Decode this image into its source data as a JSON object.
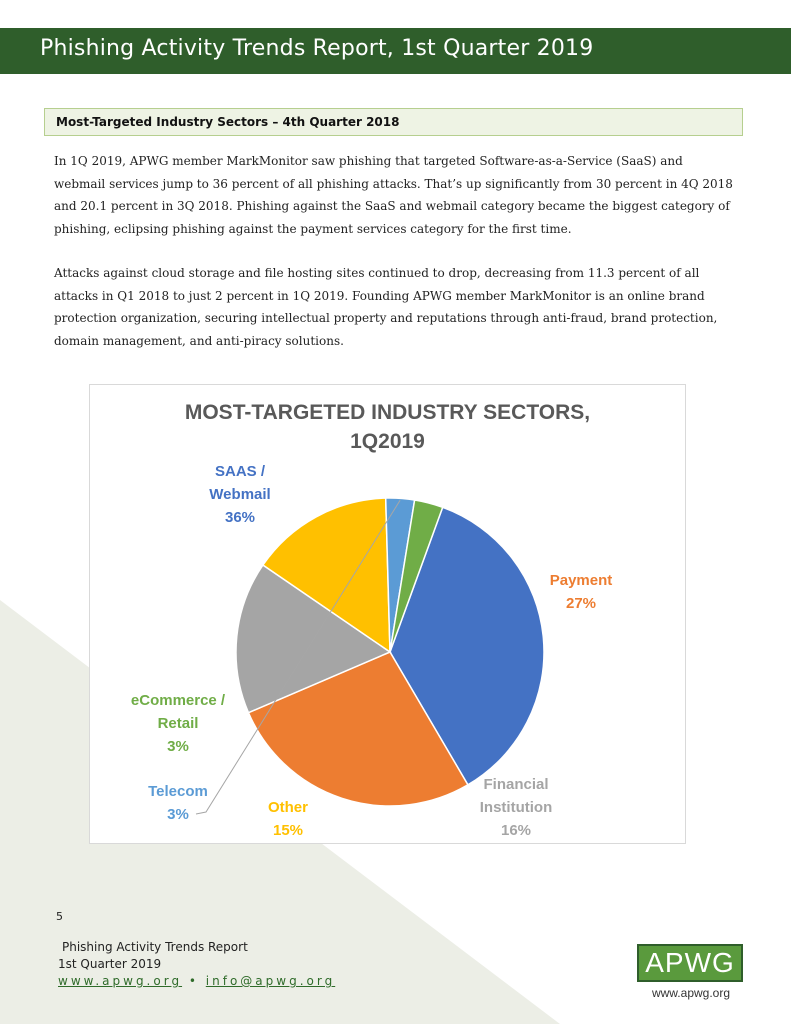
{
  "header": {
    "title": "Phishing Activity Trends Report, 1st Quarter 2019"
  },
  "section": {
    "title": "Most-Targeted Industry Sectors – 4th Quarter 2018"
  },
  "body": {
    "paragraph_1": "In 1Q 2019, APWG member MarkMonitor saw phishing that targeted Software-as-a-Service (SaaS) and webmail services jump to 36 percent of all phishing attacks. That’s up significantly from 30 percent in 4Q 2018 and 20.1 percent in 3Q 2018. Phishing against the SaaS and webmail category became the biggest category of phishing, eclipsing phishing against the payment services category for the first time.",
    "paragraph_2": "Attacks against cloud storage and file hosting sites continued to drop, decreasing from 11.3 percent of all attacks in Q1 2018 to just 2 percent in 1Q 2019. Founding APWG member MarkMonitor is an online brand protection organization, securing intellectual property and reputations through anti-fraud, brand protection, domain management, and anti-piracy solutions."
  },
  "chart_data": {
    "type": "pie",
    "title_line_1": "MOST-TARGETED INDUSTRY SECTORS,",
    "title_line_2": "1Q2019",
    "legend": "none (data labels on slices)",
    "slices": [
      {
        "label_lines": [
          "SAAS /",
          "Webmail"
        ],
        "value_label": "36%",
        "value": 36,
        "color": "#4472c4"
      },
      {
        "label_lines": [
          "Payment"
        ],
        "value_label": "27%",
        "value": 27,
        "color": "#ed7d31"
      },
      {
        "label_lines": [
          "Financial",
          "Institution"
        ],
        "value_label": "16%",
        "value": 16,
        "color": "#a5a5a5"
      },
      {
        "label_lines": [
          "Other"
        ],
        "value_label": "15%",
        "value": 15,
        "color": "#ffc000"
      },
      {
        "label_lines": [
          "Telecom"
        ],
        "value_label": "3%",
        "value": 3,
        "color": "#5b9bd5"
      },
      {
        "label_lines": [
          "eCommerce /",
          "Retail"
        ],
        "value_label": "3%",
        "value": 3,
        "color": "#70ad47"
      }
    ]
  },
  "footer": {
    "page_number": "5",
    "report_name": "Phishing Activity Trends Report",
    "quarter": "1st Quarter 2019",
    "website": "www.apwg.org",
    "separator": "•",
    "email": "info@apwg.org",
    "logo_text": "APWG",
    "logo_url": "www.apwg.org"
  },
  "colors": {
    "header_green": "#2f5e2b",
    "section_bg": "#eef3e4",
    "section_border": "#b6cf8f",
    "background_triangle": "#eceee6",
    "link_green": "#2f6b2a"
  }
}
